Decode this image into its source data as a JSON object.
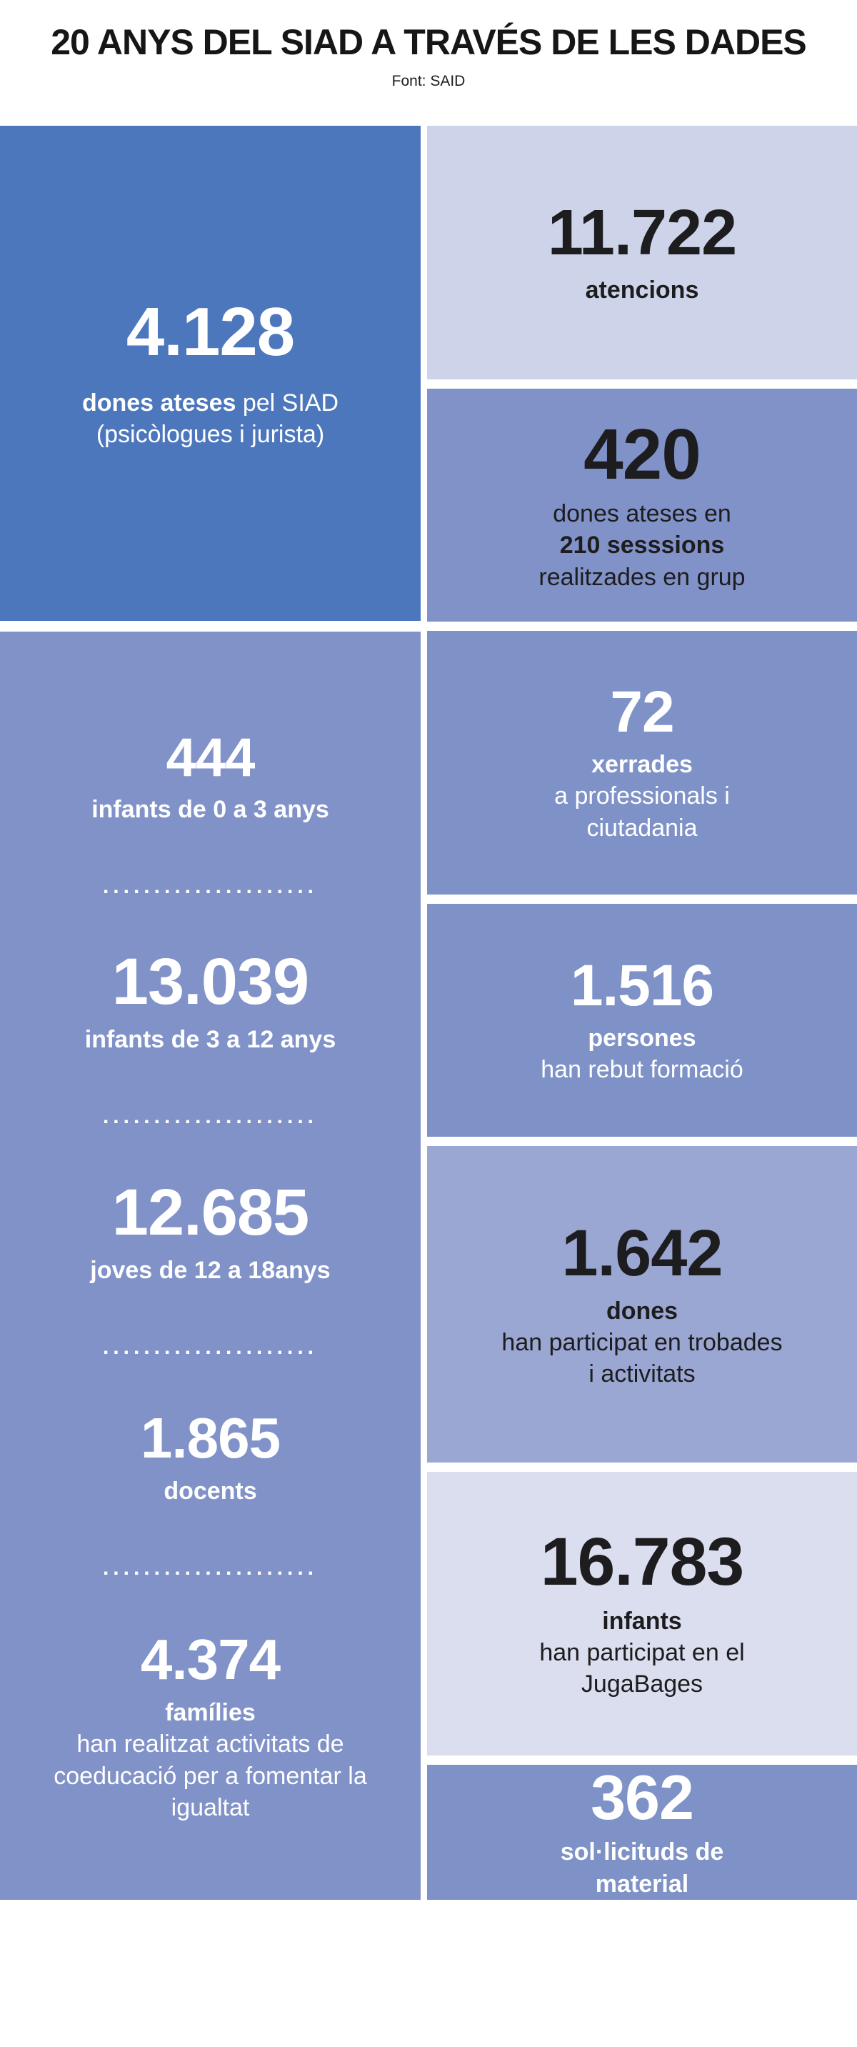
{
  "header": {
    "title": "20 ANYS DEL SIAD A TRAVÉS DE LES DADES",
    "source": "Font: SAID"
  },
  "colors": {
    "strong_blue": "#4d77bd",
    "periwinkle": "#8092c8",
    "light_periwinkle": "#9ba7d3",
    "lavender": "#cdd3e8",
    "lavender_light": "#dadeee",
    "text_dark": "#1d1d1f",
    "text_white": "#ffffff"
  },
  "left": {
    "top_box": {
      "number": "4.128",
      "label_bold": "dones ateses",
      "label_rest": " pel SIAD",
      "label_line2": "(psicòlogues i jurista)"
    },
    "tall_box": {
      "separator": ".....................",
      "items": [
        {
          "number": "444",
          "label": "infants de 0 a 3 anys"
        },
        {
          "number": "13.039",
          "label": "infants de 3 a 12 anys"
        },
        {
          "number": "12.685",
          "label": "joves de 12 a 18anys"
        },
        {
          "number": "1.865",
          "label": "docents"
        },
        {
          "number": "4.374",
          "label": "famílies",
          "description": "han realitzat activitats de coeducació per a fomentar la igualtat"
        }
      ]
    }
  },
  "right": {
    "box_atencions": {
      "number": "11.722",
      "label": "atencions"
    },
    "box_grups": {
      "number": "420",
      "line1": "dones ateses en",
      "line2_bold": "210 sesssions",
      "line3": "realitzades en grup"
    },
    "box_xerrades": {
      "number": "72",
      "label": "xerrades",
      "text": "a professionals i ciutadania"
    },
    "box_formacio": {
      "number": "1.516",
      "label": "persones",
      "text": "han rebut formació"
    },
    "box_trobades": {
      "number": "1.642",
      "label": "dones",
      "text": "han participat en trobades i activitats"
    },
    "box_jugabages": {
      "number": "16.783",
      "label": "infants",
      "text": "han participat en el JugaBages"
    },
    "box_material": {
      "number": "362",
      "label": "sol·licituds de material"
    }
  },
  "chart_data": {
    "type": "table",
    "title": "20 ANYS DEL SIAD A TRAVÉS DE LES DADES",
    "source": "Font: SAID",
    "items": [
      {
        "value": 4128,
        "label": "dones ateses pel SIAD (psicòlogues i jurista)"
      },
      {
        "value": 11722,
        "label": "atencions"
      },
      {
        "value": 420,
        "label": "dones ateses en 210 sesssions realitzades en grup"
      },
      {
        "value": 444,
        "label": "infants de 0 a 3 anys"
      },
      {
        "value": 72,
        "label": "xerrades a professionals i ciutadania"
      },
      {
        "value": 13039,
        "label": "infants de 3 a 12 anys"
      },
      {
        "value": 1516,
        "label": "persones han rebut formació"
      },
      {
        "value": 12685,
        "label": "joves de 12 a 18anys"
      },
      {
        "value": 1642,
        "label": "dones han participat en trobades i activitats"
      },
      {
        "value": 1865,
        "label": "docents"
      },
      {
        "value": 16783,
        "label": "infants han participat en el JugaBages"
      },
      {
        "value": 4374,
        "label": "famílies han realitzat activitats de coeducació per a fomentar la igualtat"
      },
      {
        "value": 362,
        "label": "sol·licituds de material"
      }
    ]
  }
}
